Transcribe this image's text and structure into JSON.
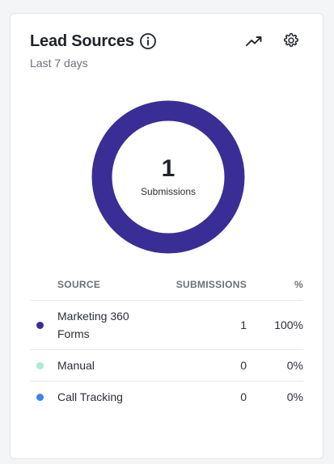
{
  "widget": {
    "title": "Lead Sources",
    "subtitle": "Last 7 days",
    "icons": {
      "info": "info-icon",
      "trend": "trending-up-icon",
      "settings": "gear-icon"
    }
  },
  "donut": {
    "total": "1",
    "label": "Submissions",
    "ring_color": "#3b2d96"
  },
  "table": {
    "headers": {
      "source": "SOURCE",
      "submissions": "SUBMISSIONS",
      "percent": "%"
    },
    "rows": [
      {
        "source": "Marketing 360 Forms",
        "submissions": "1",
        "percent": "100%",
        "color": "#3b2d96"
      },
      {
        "source": "Manual",
        "submissions": "0",
        "percent": "0%",
        "color": "#a8ecd6"
      },
      {
        "source": "Call Tracking",
        "submissions": "0",
        "percent": "0%",
        "color": "#3c82f0"
      }
    ]
  }
}
